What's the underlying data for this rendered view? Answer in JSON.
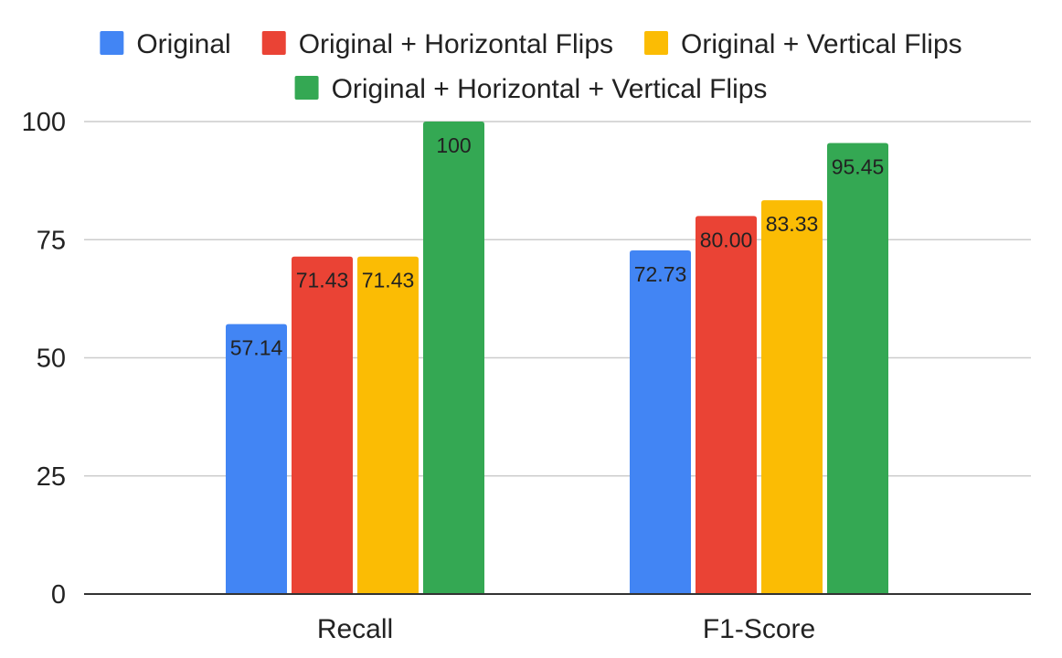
{
  "chart_data": {
    "type": "bar",
    "categories": [
      "Recall",
      "F1-Score"
    ],
    "series": [
      {
        "name": "Original",
        "color": "#4285f4",
        "values": [
          57.14,
          72.73
        ],
        "labels": [
          "57.14",
          "72.73"
        ]
      },
      {
        "name": "Original + Horizontal Flips",
        "color": "#ea4335",
        "values": [
          71.43,
          80.0
        ],
        "labels": [
          "71.43",
          "80.00"
        ]
      },
      {
        "name": "Original + Vertical Flips",
        "color": "#fbbc04",
        "values": [
          71.43,
          83.33
        ],
        "labels": [
          "71.43",
          "83.33"
        ]
      },
      {
        "name": "Original + Horizontal + Vertical Flips",
        "color": "#34a853",
        "values": [
          100,
          95.45
        ],
        "labels": [
          "100",
          "95.45"
        ]
      }
    ],
    "ylim": [
      0,
      100
    ],
    "yticks": [
      "0",
      "25",
      "50",
      "75",
      "100"
    ],
    "grid": true,
    "legend": "top",
    "title": "",
    "xlabel": "",
    "ylabel": ""
  }
}
